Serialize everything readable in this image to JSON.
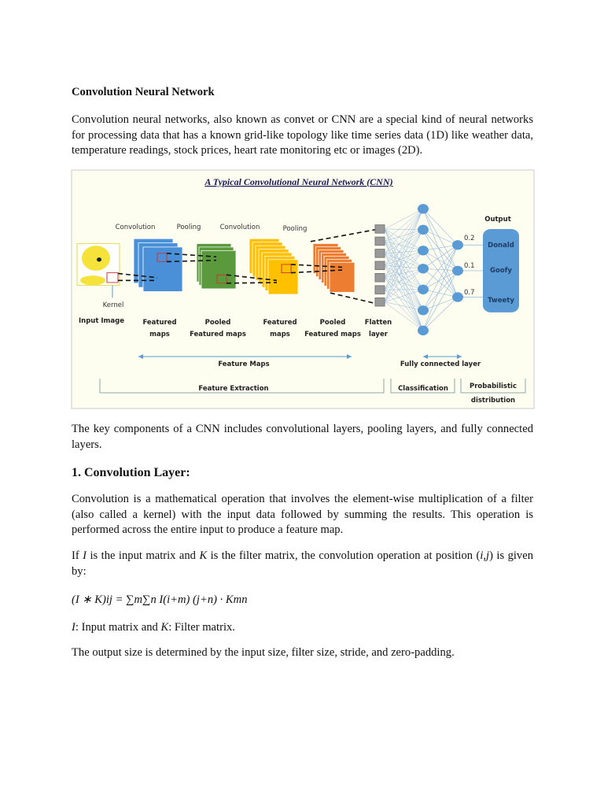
{
  "title": "Convolution Neural Network",
  "intro": "Convolution neural networks, also known as convet or CNN are a special kind of neural networks for processing data that has a known grid-like topology like time series data (1D) like weather data, temperature readings, stock prices, heart rate monitoring etc or images (2D).",
  "figure": {
    "title": "A Typical Convolutional Neural Network (CNN)",
    "top_labels": [
      "Convolution",
      "Pooling",
      "Convolution",
      "Pooling"
    ],
    "kernel": "Kernel",
    "input_image": "Input Image",
    "stage_labels": [
      [
        "Featured",
        "maps"
      ],
      [
        "Pooled",
        "Featured maps"
      ],
      [
        "Featured",
        "maps"
      ],
      [
        "Pooled",
        "Featured maps"
      ],
      [
        "Flatten",
        "layer"
      ]
    ],
    "output_label": "Output",
    "outputs": [
      "Donald",
      "Goofy",
      "Tweety"
    ],
    "probabilities": [
      "0.2",
      "0.1",
      "0.7"
    ],
    "feature_maps": "Feature Maps",
    "fully_connected": "Fully connected layer",
    "feature_extraction": "Feature Extraction",
    "classification": "Classification",
    "probabilistic": [
      "Probabilistic",
      "distribution"
    ],
    "colors": {
      "conv1": "#4a90d9",
      "pool1": "#5b9a3c",
      "conv2": "#ffc000",
      "pool2": "#ed7d31",
      "node": "#5b9bd5",
      "output_box": "#5b9bd5",
      "background": "#fdfdf0"
    }
  },
  "components": "The key components of a CNN includes convolutional layers, pooling layers, and fully connected layers.",
  "section1": {
    "heading": "1. Convolution Layer:",
    "p1": "Convolution is a mathematical operation that involves the element-wise multiplication of a filter (also called a kernel) with the input data followed by summing the results. This operation is performed across the entire input to produce a feature map.",
    "p2_parts": [
      "If ",
      "I",
      " is the input matrix and ",
      "K",
      " is the filter matrix, the convolution operation at position (",
      "i,j",
      ") is given by:"
    ],
    "formula": "(I ∗ K)ij = ∑m∑n I(i+m) (j+n) · Kmn",
    "def_parts": [
      "I",
      ": Input matrix and ",
      "K",
      ": Filter matrix."
    ],
    "p3": "The output size is determined by the input size, filter size, stride, and zero-padding."
  }
}
